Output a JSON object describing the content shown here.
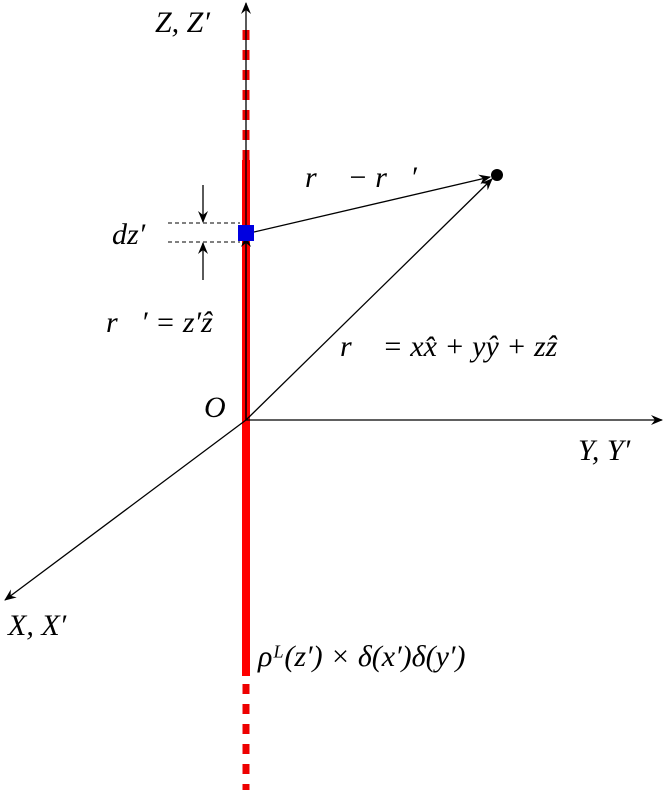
{
  "axes": {
    "z": "Z, Z′",
    "y": "Y, Y′",
    "x": "X, X′",
    "origin": "O"
  },
  "labels": {
    "dz": "dz′",
    "r_minus_rp": "r⃗ − r⃗′",
    "rp": "r⃗′ = z′ẑ",
    "r": "r⃗ = xx̂ + yŷ + zẑ",
    "density": "ρᴸ(z′) × δ(x′)δ(y′)"
  }
}
